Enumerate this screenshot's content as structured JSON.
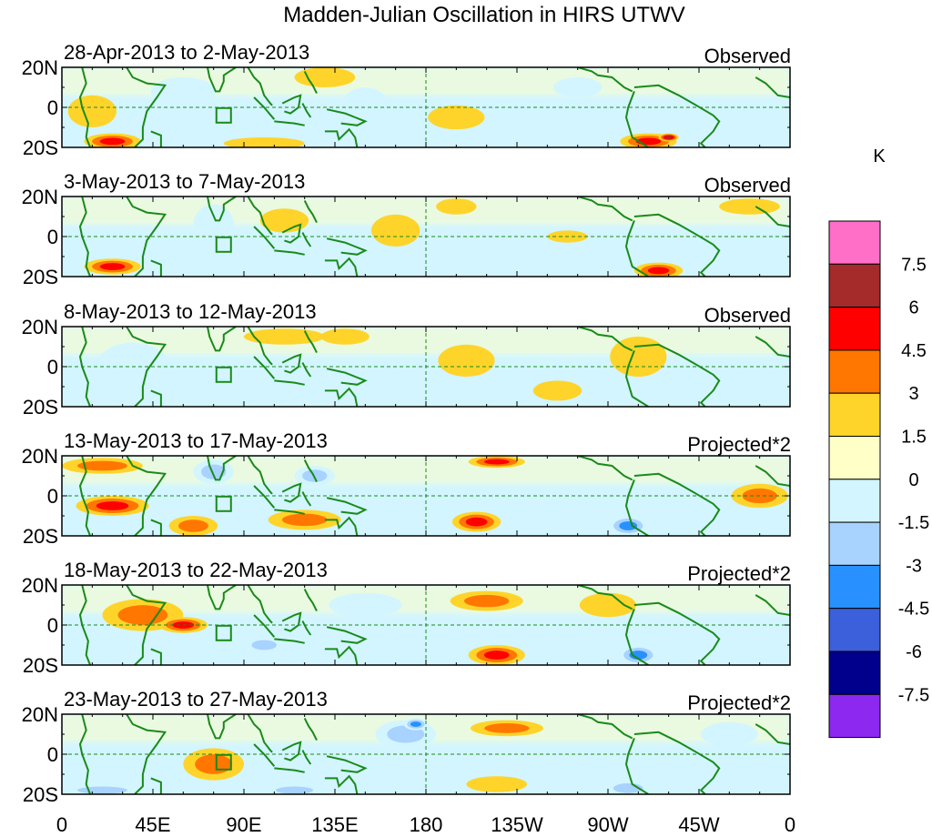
{
  "chart_data": {
    "type": "heatmap",
    "title": "Madden-Julian Oscillation in HIRS UTWV",
    "unit": "K",
    "x_tick_labels": [
      "0",
      "45E",
      "90E",
      "135E",
      "180",
      "135W",
      "90W",
      "45W",
      "0"
    ],
    "y_tick_labels": [
      "20N",
      "0",
      "20S"
    ],
    "x_range_deg_east": [
      0,
      360
    ],
    "y_range_deg": [
      -20,
      20
    ],
    "colorbar": {
      "levels": [
        "7.5",
        "6",
        "4.5",
        "3",
        "1.5",
        "0",
        "-1.5",
        "-3",
        "-4.5",
        "-6",
        "-7.5"
      ],
      "colors": [
        "#ff6ec7",
        "#a52a2a",
        "#ff0000",
        "#ff7700",
        "#ffd42a",
        "#ffffc8",
        "#d2f5ff",
        "#a8d2ff",
        "#2891ff",
        "#3c5fdc",
        "#00008c",
        "#8c28f0"
      ]
    },
    "panels": [
      {
        "date_range": "28-Apr-2013 to 2-May-2013",
        "label": "Observed",
        "features": [
          {
            "lon": 25,
            "lat": -17,
            "value": 4.5,
            "rx": 14,
            "ry": 4
          },
          {
            "lon": 15,
            "lat": -2,
            "value": 1.5,
            "rx": 12,
            "ry": 8
          },
          {
            "lon": 60,
            "lat": 8,
            "value": -1.5,
            "rx": 16,
            "ry": 7
          },
          {
            "lon": 100,
            "lat": -18,
            "value": 1.5,
            "rx": 20,
            "ry": 3
          },
          {
            "lon": 130,
            "lat": 15,
            "value": 1.5,
            "rx": 15,
            "ry": 5
          },
          {
            "lon": 150,
            "lat": 0,
            "value": -1.5,
            "rx": 12,
            "ry": 10
          },
          {
            "lon": 195,
            "lat": -5,
            "value": 1.5,
            "rx": 14,
            "ry": 6
          },
          {
            "lon": 255,
            "lat": 10,
            "value": -1.5,
            "rx": 12,
            "ry": 5
          },
          {
            "lon": 290,
            "lat": -17,
            "value": 4.5,
            "rx": 14,
            "ry": 4
          },
          {
            "lon": 300,
            "lat": -15,
            "value": 6,
            "rx": 5,
            "ry": 2
          }
        ]
      },
      {
        "date_range": "3-May-2013 to 7-May-2013",
        "label": "Observed",
        "features": [
          {
            "lon": 25,
            "lat": -15,
            "value": 4.5,
            "rx": 14,
            "ry": 4
          },
          {
            "lon": 75,
            "lat": 6,
            "value": -1.5,
            "rx": 10,
            "ry": 10
          },
          {
            "lon": 110,
            "lat": 8,
            "value": 1.5,
            "rx": 12,
            "ry": 6
          },
          {
            "lon": 165,
            "lat": 3,
            "value": 1.5,
            "rx": 12,
            "ry": 8
          },
          {
            "lon": 195,
            "lat": 15,
            "value": 1.5,
            "rx": 10,
            "ry": 4
          },
          {
            "lon": 215,
            "lat": -5,
            "value": -1.5,
            "rx": 18,
            "ry": 6
          },
          {
            "lon": 250,
            "lat": 0,
            "value": 1.5,
            "rx": 10,
            "ry": 3
          },
          {
            "lon": 295,
            "lat": -17,
            "value": 4.5,
            "rx": 12,
            "ry": 4
          },
          {
            "lon": 340,
            "lat": 15,
            "value": 1.5,
            "rx": 15,
            "ry": 4
          }
        ]
      },
      {
        "date_range": "8-May-2013 to 12-May-2013",
        "label": "Observed",
        "features": [
          {
            "lon": 35,
            "lat": 0,
            "value": -1.5,
            "rx": 18,
            "ry": 12
          },
          {
            "lon": 110,
            "lat": 15,
            "value": 1.5,
            "rx": 20,
            "ry": 4
          },
          {
            "lon": 140,
            "lat": 15,
            "value": 1.5,
            "rx": 12,
            "ry": 4
          },
          {
            "lon": 200,
            "lat": 3,
            "value": 1.5,
            "rx": 14,
            "ry": 8
          },
          {
            "lon": 245,
            "lat": -12,
            "value": 1.5,
            "rx": 12,
            "ry": 5
          },
          {
            "lon": 285,
            "lat": 5,
            "value": 1.5,
            "rx": 14,
            "ry": 10
          },
          {
            "lon": 320,
            "lat": -5,
            "value": -1.5,
            "rx": 12,
            "ry": 8
          }
        ]
      },
      {
        "date_range": "13-May-2013 to 17-May-2013",
        "label": "Projected*2",
        "features": [
          {
            "lon": 20,
            "lat": 15,
            "value": 3,
            "rx": 20,
            "ry": 4
          },
          {
            "lon": 25,
            "lat": -5,
            "value": 4.5,
            "rx": 18,
            "ry": 5
          },
          {
            "lon": 75,
            "lat": 12,
            "value": -3,
            "rx": 10,
            "ry": 6
          },
          {
            "lon": 65,
            "lat": -15,
            "value": 3,
            "rx": 12,
            "ry": 5
          },
          {
            "lon": 125,
            "lat": 10,
            "value": -3,
            "rx": 10,
            "ry": 5
          },
          {
            "lon": 120,
            "lat": -12,
            "value": 3,
            "rx": 18,
            "ry": 5
          },
          {
            "lon": 215,
            "lat": 17,
            "value": 4.5,
            "rx": 14,
            "ry": 3
          },
          {
            "lon": 205,
            "lat": -13,
            "value": 4.5,
            "rx": 12,
            "ry": 5
          },
          {
            "lon": 280,
            "lat": -15,
            "value": -4.5,
            "rx": 10,
            "ry": 5
          },
          {
            "lon": 345,
            "lat": 0,
            "value": 3,
            "rx": 14,
            "ry": 6
          }
        ]
      },
      {
        "date_range": "18-May-2013 to 22-May-2013",
        "label": "Projected*2",
        "features": [
          {
            "lon": 40,
            "lat": 5,
            "value": 3,
            "rx": 20,
            "ry": 8
          },
          {
            "lon": 60,
            "lat": 0,
            "value": 4.5,
            "rx": 12,
            "ry": 4
          },
          {
            "lon": 45,
            "lat": -15,
            "value": -1.5,
            "rx": 15,
            "ry": 4
          },
          {
            "lon": 100,
            "lat": -10,
            "value": -3,
            "rx": 10,
            "ry": 4
          },
          {
            "lon": 150,
            "lat": 10,
            "value": -1.5,
            "rx": 18,
            "ry": 6
          },
          {
            "lon": 210,
            "lat": 12,
            "value": 3,
            "rx": 18,
            "ry": 5
          },
          {
            "lon": 215,
            "lat": -15,
            "value": 4.5,
            "rx": 14,
            "ry": 5
          },
          {
            "lon": 285,
            "lat": -15,
            "value": -4.5,
            "rx": 10,
            "ry": 5
          },
          {
            "lon": 270,
            "lat": 10,
            "value": 1.5,
            "rx": 14,
            "ry": 6
          }
        ]
      },
      {
        "date_range": "23-May-2013 to 27-May-2013",
        "label": "Projected*2",
        "features": [
          {
            "lon": 20,
            "lat": -18,
            "value": -3,
            "rx": 20,
            "ry": 3
          },
          {
            "lon": 75,
            "lat": -5,
            "value": 3,
            "rx": 15,
            "ry": 8
          },
          {
            "lon": 115,
            "lat": -18,
            "value": -3,
            "rx": 15,
            "ry": 3
          },
          {
            "lon": 170,
            "lat": 10,
            "value": -3,
            "rx": 15,
            "ry": 7
          },
          {
            "lon": 175,
            "lat": 15,
            "value": -4.5,
            "rx": 6,
            "ry": 3
          },
          {
            "lon": 220,
            "lat": 13,
            "value": 3,
            "rx": 18,
            "ry": 4
          },
          {
            "lon": 215,
            "lat": -15,
            "value": 1.5,
            "rx": 15,
            "ry": 4
          },
          {
            "lon": 280,
            "lat": -17,
            "value": -3,
            "rx": 12,
            "ry": 4
          },
          {
            "lon": 330,
            "lat": 10,
            "value": -1.5,
            "rx": 14,
            "ry": 6
          }
        ]
      }
    ]
  }
}
